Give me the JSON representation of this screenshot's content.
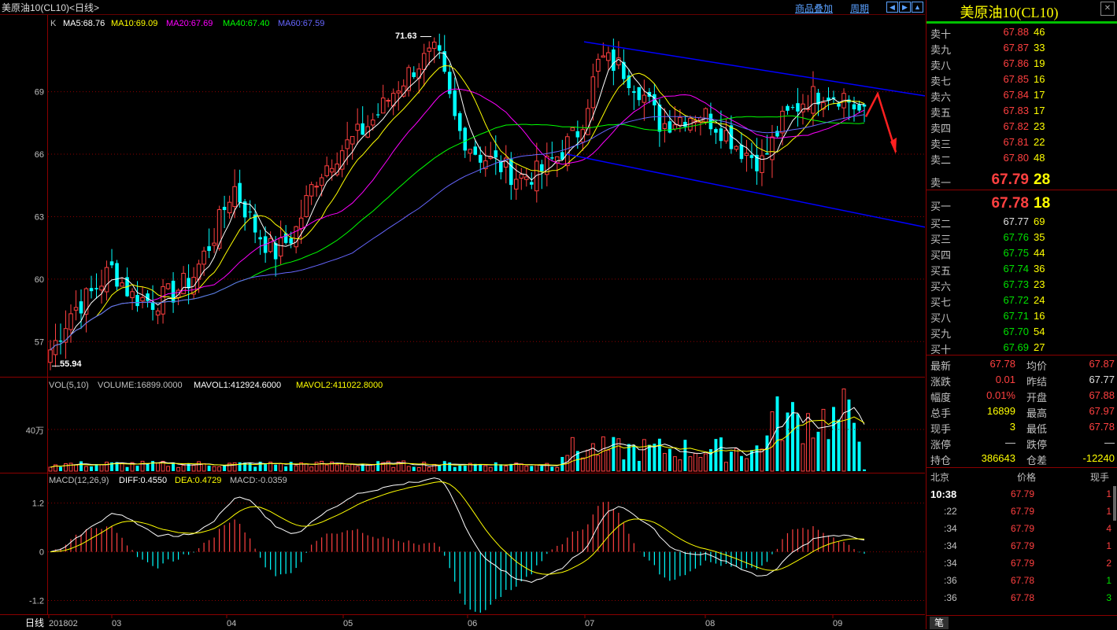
{
  "header": {
    "title": "美原油10(CL10)<日线>",
    "btn_overlay": "商品叠加",
    "btn_period": "周期",
    "nav_icons": [
      "arrow-left-icon",
      "arrow-right-icon",
      "arrow-up-icon"
    ]
  },
  "main_chart": {
    "indicator_k": "K",
    "ma5": "MA5:68.76",
    "ma10": "MA10:69.09",
    "ma20": "MA20:67.69",
    "ma40": "MA40:67.40",
    "ma60": "MA60:67.59",
    "high_label": "71.63",
    "low_label": "55.94",
    "y_ticks": [
      "69",
      "66",
      "63",
      "60",
      "57"
    ],
    "colors": {
      "ma5": "#ffffff",
      "ma10": "#ffff00",
      "ma20": "#ff00ff",
      "ma40": "#00ff00",
      "ma60": "#6666ff",
      "up": "#ff4040",
      "down": "#00ffff",
      "channel": "#0000ff",
      "arrow": "#ff2020"
    }
  },
  "volume_chart": {
    "label": "VOL(5,10)",
    "volume": "VOLUME:16899.0000",
    "mavol1": "MAVOL1:412924.6000",
    "mavol2": "MAVOL2:411022.8000",
    "y_tick": "40万"
  },
  "macd_chart": {
    "label": "MACD(12,26,9)",
    "diff": "DIFF:0.4550",
    "dea": "DEA:0.4729",
    "macd": "MACD:-0.0359",
    "y_ticks": [
      "1.2",
      "0",
      "-1.2"
    ]
  },
  "x_axis": {
    "period_label": "日线",
    "labels": [
      "201802",
      "03",
      "04",
      "05",
      "06",
      "07",
      "08",
      "09"
    ]
  },
  "quote_panel": {
    "name": "美原油10(CL10)",
    "asks": [
      {
        "label": "卖十",
        "price": "67.88",
        "vol": "46"
      },
      {
        "label": "卖九",
        "price": "67.87",
        "vol": "33"
      },
      {
        "label": "卖八",
        "price": "67.86",
        "vol": "19"
      },
      {
        "label": "卖七",
        "price": "67.85",
        "vol": "16"
      },
      {
        "label": "卖六",
        "price": "67.84",
        "vol": "17"
      },
      {
        "label": "卖五",
        "price": "67.83",
        "vol": "17"
      },
      {
        "label": "卖四",
        "price": "67.82",
        "vol": "23"
      },
      {
        "label": "卖三",
        "price": "67.81",
        "vol": "22"
      },
      {
        "label": "卖二",
        "price": "67.80",
        "vol": "48"
      }
    ],
    "ask1": {
      "label": "卖一",
      "price": "67.79",
      "vol": "28"
    },
    "bid1": {
      "label": "买一",
      "price": "67.78",
      "vol": "18"
    },
    "bids": [
      {
        "label": "买二",
        "price": "67.77",
        "vol": "69"
      },
      {
        "label": "买三",
        "price": "67.76",
        "vol": "35"
      },
      {
        "label": "买四",
        "price": "67.75",
        "vol": "44"
      },
      {
        "label": "买五",
        "price": "67.74",
        "vol": "36"
      },
      {
        "label": "买六",
        "price": "67.73",
        "vol": "23"
      },
      {
        "label": "买七",
        "price": "67.72",
        "vol": "24"
      },
      {
        "label": "买八",
        "price": "67.71",
        "vol": "16"
      },
      {
        "label": "买九",
        "price": "67.70",
        "vol": "54"
      },
      {
        "label": "买十",
        "price": "67.69",
        "vol": "27"
      }
    ],
    "stats": [
      {
        "l1": "最新",
        "v1": "67.78",
        "c1": "red",
        "l2": "均价",
        "v2": "67.87",
        "c2": "red"
      },
      {
        "l1": "涨跌",
        "v1": "0.01",
        "c1": "red",
        "l2": "昨结",
        "v2": "67.77",
        "c2": "white"
      },
      {
        "l1": "幅度",
        "v1": "0.01%",
        "c1": "red",
        "l2": "开盘",
        "v2": "67.88",
        "c2": "red"
      },
      {
        "l1": "总手",
        "v1": "16899",
        "c1": "yellow",
        "l2": "最高",
        "v2": "67.97",
        "c2": "red"
      },
      {
        "l1": "现手",
        "v1": "3",
        "c1": "yellow",
        "l2": "最低",
        "v2": "67.78",
        "c2": "red"
      },
      {
        "l1": "涨停",
        "v1": "—",
        "c1": "white",
        "l2": "跌停",
        "v2": "—",
        "c2": "white"
      },
      {
        "l1": "持仓",
        "v1": "386643",
        "c1": "yellow",
        "l2": "仓差",
        "v2": "-12240",
        "c2": "yellow"
      }
    ],
    "ticks_header": {
      "place": "北京",
      "price": "价格",
      "vol": "现手"
    },
    "ticks": [
      {
        "time": "10:38",
        "price": "67.79",
        "vol": "1"
      },
      {
        "time": ":22",
        "price": "67.79",
        "vol": "1"
      },
      {
        "time": ":34",
        "price": "67.79",
        "vol": "4"
      },
      {
        "time": ":34",
        "price": "67.79",
        "vol": "1"
      },
      {
        "time": ":34",
        "price": "67.79",
        "vol": "2"
      },
      {
        "time": ":36",
        "price": "67.78",
        "vol": "1"
      },
      {
        "time": ":36",
        "price": "67.78",
        "vol": "3"
      }
    ],
    "tab_label": "笔"
  },
  "chart_data": [
    {
      "type": "candlestick",
      "title": "美原油10(CL10)<日线>",
      "x": [
        "2018-02",
        "2018-03",
        "2018-04",
        "2018-05",
        "2018-06",
        "2018-07",
        "2018-08",
        "2018-09"
      ],
      "ylim": [
        55.5,
        72.5
      ],
      "high": 71.63,
      "low": 55.94,
      "series": [
        {
          "name": "MA5",
          "last": 68.76
        },
        {
          "name": "MA10",
          "last": 69.09
        },
        {
          "name": "MA20",
          "last": 67.69
        },
        {
          "name": "MA40",
          "last": 67.4
        },
        {
          "name": "MA60",
          "last": 67.59
        }
      ],
      "close_path": [
        56.5,
        58.4,
        59.3,
        60.5,
        59.2,
        58.9,
        59.3,
        60.1,
        62.0,
        64.5,
        62.5,
        61.2,
        62.2,
        64.8,
        66.0,
        66.8,
        67.8,
        69.2,
        70.3,
        70.9,
        67.2,
        66.0,
        65.5,
        64.9,
        65.1,
        66.0,
        67.2,
        70.6,
        70.2,
        69.1,
        67.4,
        67.8,
        68.0,
        67.2,
        66.2,
        65.6,
        67.6,
        68.6,
        69.0,
        68.8,
        67.8
      ]
    },
    {
      "type": "bar",
      "title": "VOL(5,10)",
      "series": [
        {
          "name": "MAVOL1",
          "last": 412924.6
        },
        {
          "name": "MAVOL2",
          "last": 411022.8
        }
      ],
      "last_volume": 16899
    },
    {
      "type": "line",
      "title": "MACD(12,26,9)",
      "ylim": [
        -1.5,
        1.6
      ],
      "series": [
        {
          "name": "DIFF",
          "last": 0.455
        },
        {
          "name": "DEA",
          "last": 0.4729
        },
        {
          "name": "MACD",
          "last": -0.0359
        }
      ]
    }
  ]
}
